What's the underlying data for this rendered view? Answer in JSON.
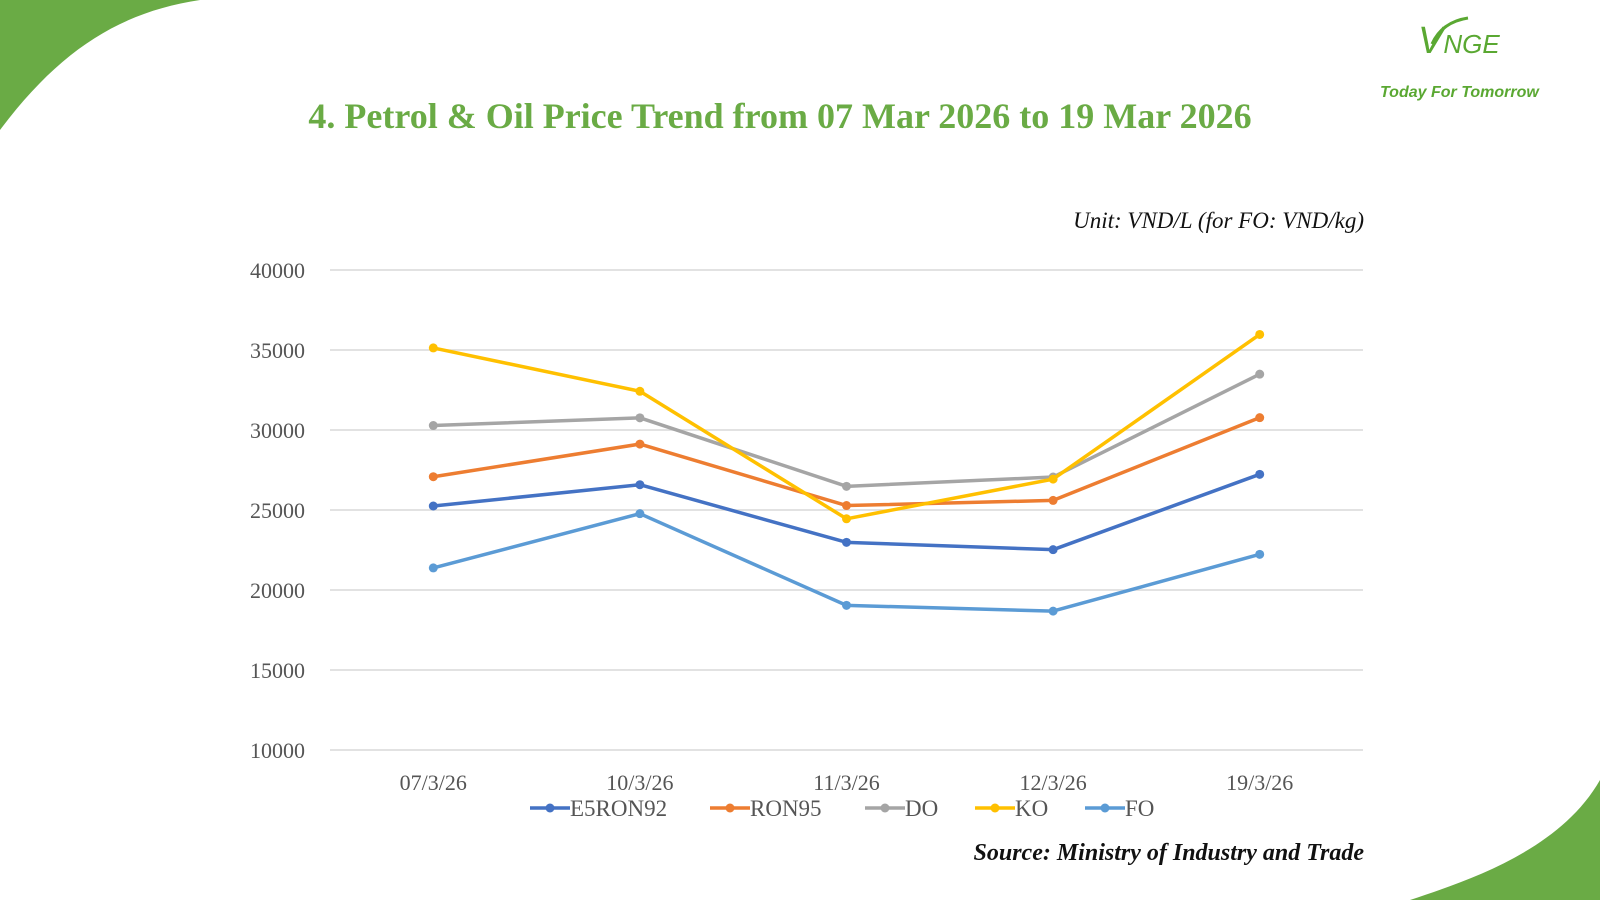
{
  "page": {
    "title": "4. Petrol & Oil Price Trend from 07 Mar 2026 to 19 Mar 2026",
    "unit_note": "Unit: VND/L (for FO: VND/kg)",
    "source": "Source: Ministry of Industry and Trade",
    "brand_color": "#6aab45"
  },
  "logo": {
    "mark_v": "V",
    "mark_rest": "NGE",
    "tagline": "Today For Tomorrow"
  },
  "chart_data": {
    "type": "line",
    "title": "",
    "xlabel": "",
    "ylabel": "",
    "categories": [
      "07/3/26",
      "10/3/26",
      "11/3/26",
      "12/3/26",
      "19/3/26"
    ],
    "ylim": [
      10000,
      40000
    ],
    "yticks": [
      10000,
      15000,
      20000,
      25000,
      30000,
      35000,
      40000
    ],
    "grid": true,
    "legend_position": "bottom",
    "series": [
      {
        "name": "E5RON92",
        "color": "#4472c4",
        "values": [
          25250,
          26580,
          22980,
          22520,
          27230
        ]
      },
      {
        "name": "RON95",
        "color": "#ed7d31",
        "values": [
          27080,
          29120,
          25280,
          25600,
          30770
        ]
      },
      {
        "name": "DO",
        "color": "#a5a5a5",
        "values": [
          30280,
          30760,
          26480,
          27060,
          33490
        ]
      },
      {
        "name": "KO",
        "color": "#ffc000",
        "values": [
          35130,
          32420,
          24450,
          26930,
          35970
        ]
      },
      {
        "name": "FO",
        "color": "#5b9bd5",
        "values": [
          21380,
          24770,
          19040,
          18680,
          22230
        ]
      }
    ]
  }
}
